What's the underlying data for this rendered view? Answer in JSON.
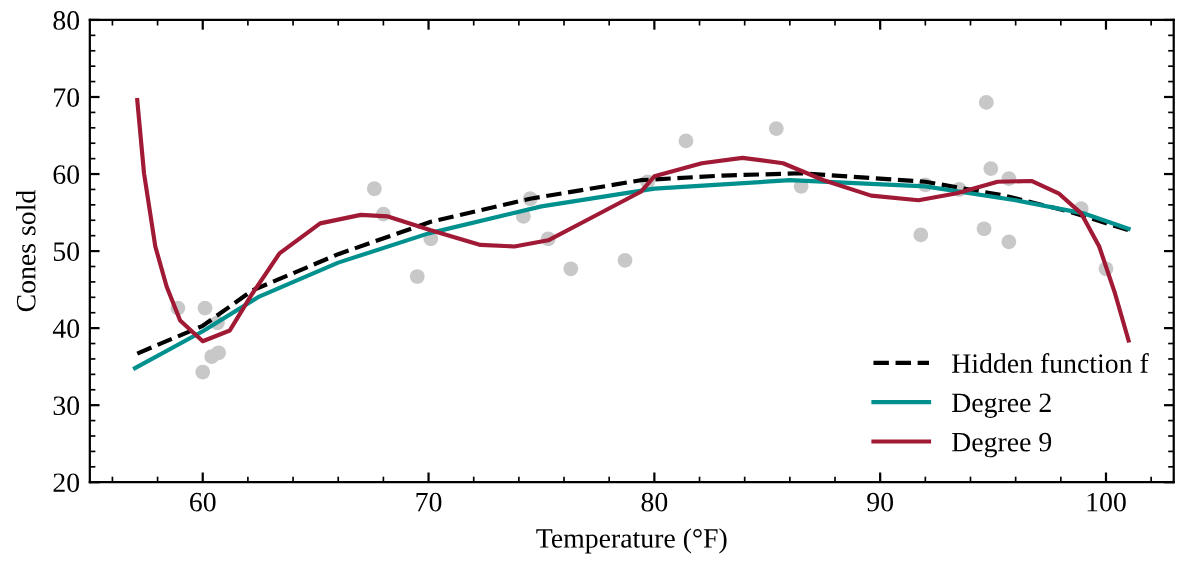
{
  "chart_data": {
    "type": "line",
    "xlabel": "Temperature (°F)",
    "ylabel": "Cones sold",
    "xlim": [
      55,
      103
    ],
    "ylim": [
      20,
      80
    ],
    "xticks": [
      60,
      70,
      80,
      90,
      100
    ],
    "yticks": [
      20,
      30,
      40,
      50,
      60,
      70,
      80
    ],
    "grid": false,
    "legend": "bottom right",
    "series": [
      {
        "type": "scatter",
        "color": "#c8c8c8",
        "marker": "circle",
        "x": [
          58.9,
          60.1,
          60.65,
          60.4,
          60.7,
          60.0,
          67.6,
          68.0,
          70.1,
          69.5,
          74.2,
          74.5,
          75.3,
          76.3,
          78.7,
          79.7,
          81.4,
          85.4,
          86.5,
          91.8,
          92.0,
          93.5,
          94.7,
          94.6,
          94.9,
          95.7,
          95.7,
          98.9,
          100.0
        ],
        "values": [
          42.6,
          42.6,
          40.7,
          36.3,
          36.8,
          34.3,
          58.1,
          54.8,
          51.6,
          46.7,
          54.5,
          56.8,
          51.6,
          47.7,
          48.8,
          59.0,
          64.3,
          65.9,
          58.4,
          52.1,
          58.6,
          58.0,
          69.3,
          52.9,
          60.7,
          59.4,
          51.2,
          55.5,
          47.7
        ]
      },
      {
        "name": "Hidden function f",
        "color": "#000000",
        "line_style": "dashed",
        "x": [
          57.1,
          60,
          62.2,
          66,
          70.1,
          74.5,
          79.4,
          83,
          86.5,
          92,
          95.5,
          98.4,
          101
        ],
        "values": [
          36.7,
          40.3,
          44.9,
          49.6,
          53.8,
          56.8,
          59.2,
          59.8,
          60.1,
          59.0,
          57.2,
          55.1,
          52.7
        ]
      },
      {
        "name": "Degree 2",
        "color": "#00918f",
        "line_style": "solid",
        "x": [
          57,
          60,
          62.5,
          66,
          70,
          75,
          80,
          86,
          92,
          96,
          99,
          101
        ],
        "values": [
          34.8,
          39.6,
          44.1,
          48.5,
          52.3,
          55.8,
          58.1,
          59.2,
          58.4,
          56.6,
          54.9,
          52.9
        ]
      },
      {
        "name": "Degree 9",
        "color": "#a11a35",
        "line_style": "solid",
        "x": [
          57.1,
          57.4,
          57.9,
          58.4,
          59.0,
          60.0,
          61.2,
          62.2,
          63.4,
          65.2,
          67.0,
          68.2,
          70.1,
          72.3,
          73.8,
          75.3,
          77.0,
          79.4,
          80.0,
          82.1,
          83.9,
          85.7,
          87.5,
          89.6,
          91.7,
          93.4,
          95.2,
          96.7,
          97.9,
          98.9,
          99.7,
          100.4,
          101.0
        ],
        "values": [
          69.6,
          60.1,
          50.6,
          45.4,
          41.0,
          38.3,
          39.7,
          44.5,
          49.7,
          53.6,
          54.7,
          54.5,
          52.7,
          50.8,
          50.6,
          51.4,
          54.0,
          57.7,
          59.7,
          61.4,
          62.1,
          61.4,
          59.2,
          57.2,
          56.6,
          57.5,
          59.0,
          59.1,
          57.5,
          54.9,
          50.6,
          44.5,
          38.4
        ]
      }
    ]
  }
}
